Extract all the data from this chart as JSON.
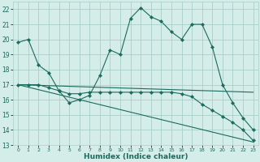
{
  "title": "",
  "xlabel": "Humidex (Indice chaleur)",
  "ylabel": "",
  "xlim": [
    -0.5,
    23.5
  ],
  "ylim": [
    13,
    22.5
  ],
  "yticks": [
    13,
    14,
    15,
    16,
    17,
    18,
    19,
    20,
    21,
    22
  ],
  "xticks": [
    0,
    1,
    2,
    3,
    4,
    5,
    6,
    7,
    8,
    9,
    10,
    11,
    12,
    13,
    14,
    15,
    16,
    17,
    18,
    19,
    20,
    21,
    22,
    23
  ],
  "xtick_labels": [
    "0",
    "1",
    "2",
    "3",
    "4",
    "5",
    "6",
    "7",
    "8",
    "9",
    "10",
    "11",
    "12",
    "13",
    "14",
    "15",
    "16",
    "17",
    "18",
    "19",
    "20",
    "21",
    "22",
    "23"
  ],
  "bg_color": "#d4ede8",
  "line_color": "#1a6b5e",
  "grid_color": "#aacfc8",
  "line1_x": [
    0,
    1,
    2,
    3,
    4,
    5,
    6,
    7,
    8,
    9,
    10,
    11,
    12,
    13,
    14,
    15,
    16,
    17,
    18,
    19,
    20,
    21,
    22,
    23
  ],
  "line1_y": [
    19.8,
    20.0,
    18.3,
    17.8,
    16.6,
    15.8,
    16.0,
    16.3,
    17.6,
    19.3,
    19.0,
    21.4,
    22.1,
    21.5,
    21.2,
    20.5,
    20.0,
    21.0,
    21.0,
    19.5,
    17.0,
    15.8,
    14.8,
    14.0
  ],
  "line2_x": [
    0,
    1,
    2,
    3,
    4,
    5,
    6,
    7,
    8,
    9,
    10,
    11,
    12,
    13,
    14,
    15,
    16,
    17,
    18,
    19,
    20,
    21,
    22,
    23
  ],
  "line2_y": [
    17.0,
    17.0,
    17.0,
    16.8,
    16.6,
    16.4,
    16.4,
    16.5,
    16.5,
    16.5,
    16.5,
    16.5,
    16.5,
    16.5,
    16.5,
    16.5,
    16.4,
    16.2,
    15.7,
    15.3,
    14.9,
    14.5,
    14.0,
    13.3
  ],
  "line3_x": [
    0,
    23
  ],
  "line3_y": [
    17.0,
    13.2
  ],
  "line4_x": [
    0,
    23
  ],
  "line4_y": [
    17.0,
    16.5
  ],
  "marker": "D",
  "marker_size": 2.2,
  "lw": 0.8
}
